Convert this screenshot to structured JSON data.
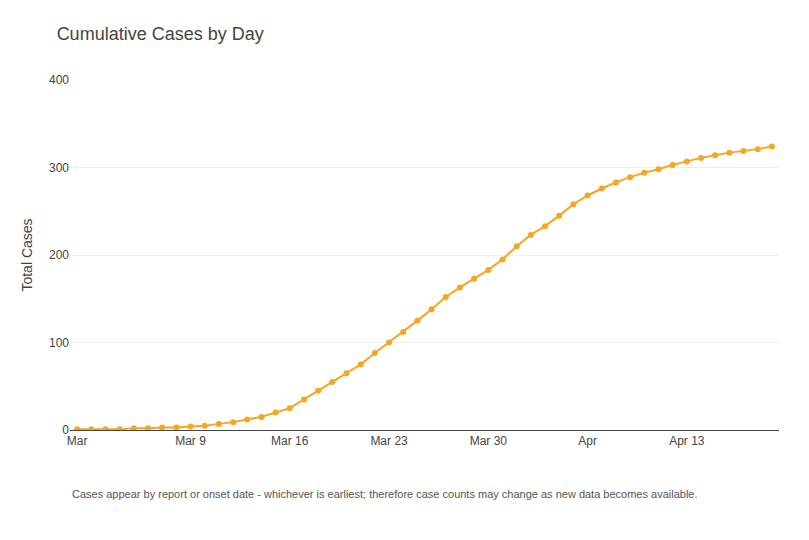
{
  "chart_data": {
    "type": "line",
    "title": "Cumulative Cases by Day",
    "ylabel": "Total Cases",
    "footnote": "Cases appear by report or onset date - whichever is earliest; therefore case counts may change as new data becomes available.",
    "categories": [
      "Mar",
      null,
      null,
      null,
      null,
      null,
      null,
      null,
      "Mar 9",
      null,
      null,
      null,
      null,
      null,
      null,
      "Mar 16",
      null,
      null,
      null,
      null,
      null,
      null,
      "Mar 23",
      null,
      null,
      null,
      null,
      null,
      null,
      "Mar 30",
      null,
      null,
      null,
      null,
      null,
      null,
      "Apr",
      null,
      null,
      null,
      null,
      null,
      null,
      "Apr 13",
      null,
      null,
      null,
      null,
      null,
      null
    ],
    "values": [
      1,
      1,
      1,
      1,
      2,
      2,
      3,
      3,
      4,
      5,
      7,
      9,
      12,
      15,
      20,
      25,
      35,
      45,
      55,
      65,
      75,
      88,
      100,
      112,
      125,
      138,
      152,
      163,
      173,
      183,
      195,
      210,
      223,
      233,
      245,
      258,
      268,
      276,
      283,
      289,
      294,
      298,
      303,
      307,
      311,
      314,
      317,
      319,
      321,
      324
    ],
    "color": "#F5A623",
    "marker": "circle",
    "ylim": [
      0,
      400
    ],
    "yticks": [
      0,
      100,
      200,
      300,
      400
    ],
    "grid": true
  }
}
